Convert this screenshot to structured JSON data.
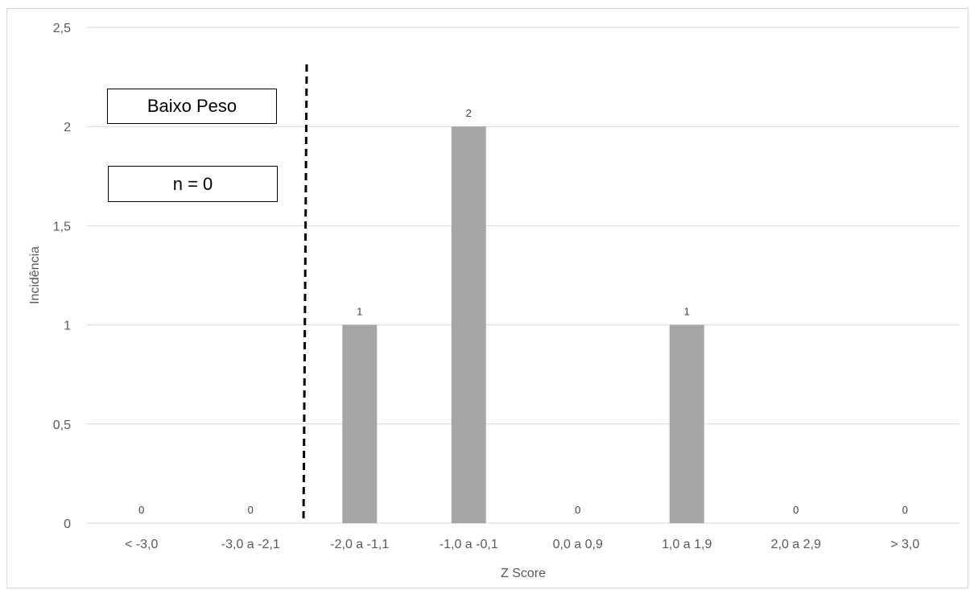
{
  "chart_data": {
    "type": "bar",
    "categories": [
      "< -3,0",
      "-3,0 a -2,1",
      "-2,0 a -1,1",
      "-1,0 a -0,1",
      "0,0 a 0,9",
      "1,0 a 1,9",
      "2,0 a 2,9",
      "> 3,0"
    ],
    "values": [
      0,
      0,
      1,
      2,
      0,
      1,
      0,
      0
    ],
    "data_labels": [
      "0",
      "0",
      "1",
      "2",
      "0",
      "1",
      "0",
      "0"
    ],
    "xlabel": "Z Score",
    "ylabel": "Incidência",
    "ylim": [
      0,
      2.5
    ],
    "y_ticks": [
      0,
      0.5,
      1,
      1.5,
      2,
      2.5
    ],
    "y_tick_labels": [
      "0",
      "0,5",
      "1",
      "1,5",
      "2",
      "2,5"
    ],
    "grid": true,
    "bar_color": "#a6a6a6",
    "gridline_color": "#d9d9d9",
    "divider_line": {
      "style": "dashed",
      "between_categories": [
        "-3,0 a -2,1",
        "-2,0 a -1,1"
      ]
    },
    "annotations": [
      "Baixo Peso",
      "n = 0"
    ]
  }
}
